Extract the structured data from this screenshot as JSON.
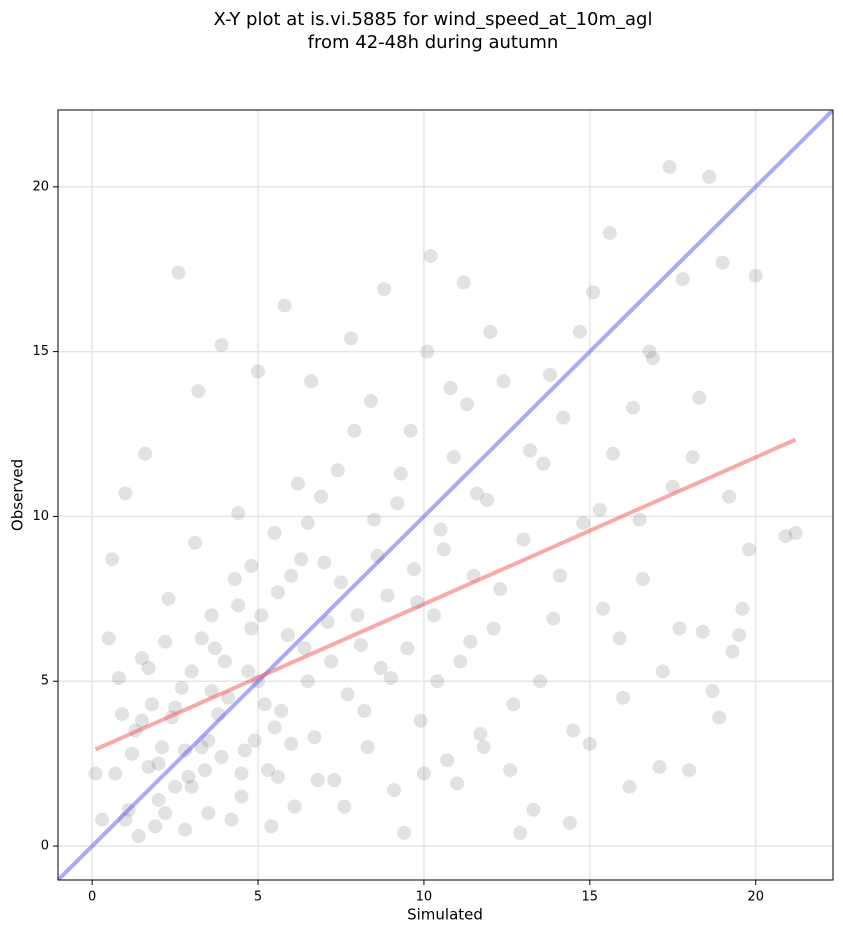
{
  "chart_data": {
    "type": "scatter",
    "title": [
      "X-Y plot at is.vi.5885 for wind_speed_at_10m_agl",
      "from 42-48h during autumn"
    ],
    "xlabel": "Simulated",
    "ylabel": "Observed",
    "xlim": [
      -1.03,
      22.33
    ],
    "ylim": [
      -1.03,
      22.33
    ],
    "xticks": [
      0,
      5,
      10,
      15,
      20
    ],
    "yticks": [
      0,
      5,
      10,
      15,
      20
    ],
    "grid": true,
    "point_color": "#707070",
    "x": [
      0.3,
      0.5,
      0.7,
      0.9,
      1.1,
      1.3,
      1.5,
      1.7,
      1.9,
      2.1,
      2.3,
      2.5,
      2.7,
      2.9,
      3.1,
      3.3,
      3.5,
      3.7,
      3.9,
      4.1,
      4.3,
      4.5,
      4.7,
      4.9,
      5.1,
      5.3,
      5.5,
      5.7,
      5.9,
      6.1,
      6.3,
      6.5,
      6.7,
      6.9,
      7.1,
      7.3,
      7.5,
      7.7,
      7.9,
      8.1,
      8.3,
      8.5,
      8.7,
      8.9,
      9.1,
      9.3,
      9.5,
      9.7,
      9.9,
      10.1,
      10.3,
      10.5,
      10.7,
      10.9,
      11.1,
      11.3,
      11.5,
      11.7,
      11.9,
      12.1,
      12.4,
      12.7,
      13.0,
      13.3,
      13.6,
      13.9,
      14.2,
      14.5,
      14.8,
      15.1,
      15.4,
      15.7,
      16.0,
      16.3,
      16.6,
      16.9,
      17.2,
      17.5,
      17.8,
      18.1,
      18.4,
      18.7,
      19.0,
      19.3,
      19.6,
      20.0,
      21.2,
      0.1,
      0.6,
      0.8,
      1.0,
      1.2,
      1.4,
      1.6,
      1.8,
      2.0,
      2.2,
      2.4,
      2.6,
      2.8,
      3.0,
      3.2,
      3.4,
      3.6,
      3.8,
      3.9,
      4.2,
      4.4,
      4.6,
      4.8,
      5.0,
      5.2,
      5.4,
      5.6,
      5.8,
      6.0,
      6.2,
      6.4,
      6.6,
      6.8,
      7.0,
      7.2,
      7.4,
      7.6,
      7.8,
      8.0,
      8.2,
      8.4,
      8.6,
      8.8,
      9.0,
      9.2,
      9.4,
      9.6,
      9.8,
      10.0,
      10.2,
      10.4,
      10.6,
      10.8,
      11.0,
      11.2,
      11.4,
      11.6,
      11.8,
      12.0,
      12.3,
      12.6,
      12.9,
      13.2,
      13.5,
      13.8,
      14.1,
      14.4,
      14.7,
      15.0,
      15.3,
      15.6,
      15.9,
      16.2,
      16.5,
      16.8,
      17.1,
      17.4,
      17.7,
      18.0,
      18.3,
      18.6,
      18.9,
      19.2,
      19.5,
      19.8,
      20.9,
      1.0,
      1.5,
      2.0,
      2.5,
      3.0,
      3.5,
      4.0,
      4.5,
      5.0,
      5.5,
      6.0,
      2.2,
      3.3,
      4.4,
      1.7,
      2.8,
      3.6,
      4.8,
      5.6,
      6.5
    ],
    "y": [
      0.8,
      6.3,
      2.2,
      4.0,
      1.1,
      3.5,
      5.7,
      2.4,
      0.6,
      3.0,
      7.5,
      1.8,
      4.8,
      2.1,
      9.2,
      3.0,
      1.0,
      6.0,
      2.7,
      4.5,
      8.1,
      1.5,
      5.3,
      3.2,
      7.0,
      2.3,
      9.5,
      4.1,
      6.4,
      1.2,
      8.7,
      5.0,
      3.3,
      10.6,
      6.8,
      2.0,
      8.0,
      4.6,
      12.6,
      6.1,
      3.0,
      9.9,
      5.4,
      7.6,
      1.7,
      11.3,
      6.0,
      8.4,
      3.8,
      15.0,
      7.0,
      9.6,
      2.6,
      11.8,
      5.6,
      13.4,
      8.2,
      3.4,
      10.5,
      6.6,
      14.1,
      4.3,
      9.3,
      1.1,
      11.6,
      6.9,
      13.0,
      3.5,
      9.8,
      16.8,
      7.2,
      11.9,
      4.5,
      13.3,
      8.1,
      14.8,
      5.3,
      10.9,
      17.2,
      11.8,
      6.5,
      4.7,
      17.7,
      5.9,
      7.2,
      17.3,
      9.5,
      2.2,
      8.7,
      5.1,
      10.7,
      2.8,
      0.3,
      11.9,
      4.3,
      1.4,
      6.2,
      3.9,
      17.4,
      0.5,
      5.3,
      13.8,
      2.3,
      7.0,
      4.0,
      15.2,
      0.8,
      10.1,
      2.9,
      6.6,
      14.4,
      4.3,
      0.6,
      7.7,
      16.4,
      3.1,
      11.0,
      6.0,
      14.1,
      2.0,
      8.6,
      5.6,
      11.4,
      1.2,
      15.4,
      7.0,
      4.1,
      13.5,
      8.8,
      16.9,
      5.1,
      10.4,
      0.4,
      12.6,
      7.4,
      2.2,
      17.9,
      5.0,
      9.0,
      13.9,
      1.9,
      17.1,
      6.2,
      10.7,
      3.0,
      15.6,
      7.8,
      2.3,
      0.4,
      12.0,
      5.0,
      14.3,
      8.2,
      0.7,
      15.6,
      3.1,
      10.2,
      18.6,
      6.3,
      1.8,
      9.9,
      15.0,
      2.4,
      20.6,
      6.6,
      2.3,
      13.6,
      20.3,
      3.9,
      10.6,
      6.4,
      9.0,
      9.4,
      0.8,
      3.8,
      2.5,
      4.2,
      1.8,
      3.2,
      5.6,
      2.2,
      5.0,
      3.6,
      8.2,
      1.0,
      6.3,
      7.3,
      5.4,
      2.9,
      4.7,
      8.5,
      2.1,
      9.8
    ],
    "lines": [
      {
        "color": "#5555ee",
        "x": [
          -1.03,
          22.33
        ],
        "y": [
          -1.03,
          22.33
        ]
      },
      {
        "color": "#ee5555",
        "x": [
          0.1,
          21.2
        ],
        "y": [
          2.93,
          12.33
        ]
      }
    ]
  }
}
